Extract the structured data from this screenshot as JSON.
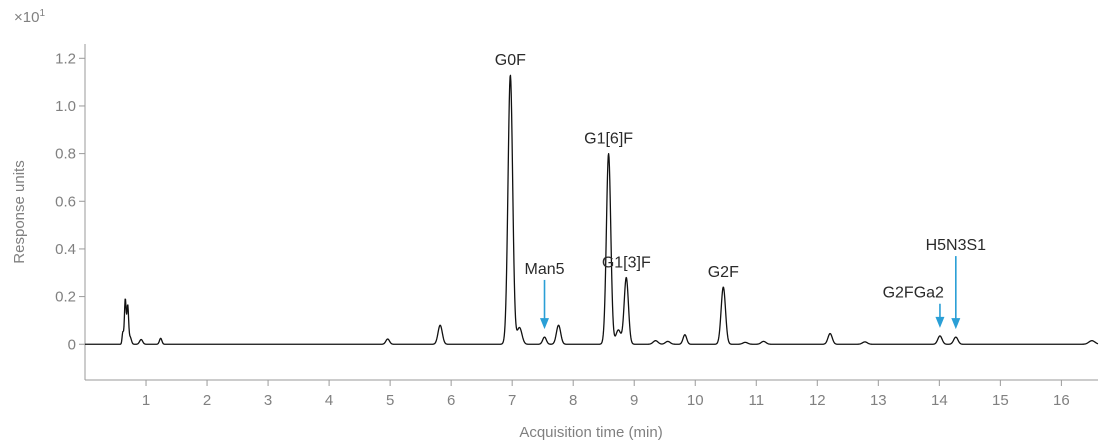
{
  "chart_data": {
    "type": "line",
    "title": "",
    "xlabel": "Acquisition time (min)",
    "ylabel": "Response units",
    "y_multiplier": "×10",
    "y_multiplier_exp": "1",
    "xlim": [
      0,
      16.6
    ],
    "ylim": [
      -0.15,
      1.26
    ],
    "xticks": [
      1,
      2,
      3,
      4,
      5,
      6,
      7,
      8,
      9,
      10,
      11,
      12,
      13,
      14,
      15,
      16
    ],
    "yticks": [
      0,
      0.2,
      0.4,
      0.6,
      0.8,
      1.0,
      1.2
    ],
    "ytick_labels": [
      "0",
      "0.2",
      "0.4",
      "0.6",
      "0.8",
      "1.0",
      "1.2"
    ],
    "grid": false,
    "trace_color": "#111111",
    "arrow_color": "#2a9fd6",
    "series": [
      {
        "peaks": [
          {
            "t": 0.62,
            "h": 0.05,
            "w": 0.012
          },
          {
            "t": 0.66,
            "h": 0.19,
            "w": 0.014
          },
          {
            "t": 0.7,
            "h": 0.16,
            "w": 0.014
          },
          {
            "t": 0.74,
            "h": 0.03,
            "w": 0.02
          },
          {
            "t": 0.92,
            "h": 0.02,
            "w": 0.025
          },
          {
            "t": 1.24,
            "h": 0.025,
            "w": 0.02
          },
          {
            "t": 4.96,
            "h": 0.022,
            "w": 0.03
          },
          {
            "t": 5.82,
            "h": 0.08,
            "w": 0.035
          },
          {
            "t": 6.97,
            "h": 1.13,
            "w": 0.038
          },
          {
            "t": 7.12,
            "h": 0.07,
            "w": 0.04
          },
          {
            "t": 7.53,
            "h": 0.03,
            "w": 0.03
          },
          {
            "t": 7.76,
            "h": 0.08,
            "w": 0.035
          },
          {
            "t": 8.58,
            "h": 0.8,
            "w": 0.036
          },
          {
            "t": 8.74,
            "h": 0.06,
            "w": 0.04
          },
          {
            "t": 8.87,
            "h": 0.28,
            "w": 0.035
          },
          {
            "t": 9.35,
            "h": 0.015,
            "w": 0.04
          },
          {
            "t": 9.55,
            "h": 0.012,
            "w": 0.04
          },
          {
            "t": 9.83,
            "h": 0.04,
            "w": 0.03
          },
          {
            "t": 10.46,
            "h": 0.24,
            "w": 0.036
          },
          {
            "t": 10.82,
            "h": 0.008,
            "w": 0.04
          },
          {
            "t": 11.12,
            "h": 0.012,
            "w": 0.04
          },
          {
            "t": 12.21,
            "h": 0.045,
            "w": 0.035
          },
          {
            "t": 12.78,
            "h": 0.01,
            "w": 0.04
          },
          {
            "t": 14.01,
            "h": 0.035,
            "w": 0.035
          },
          {
            "t": 14.27,
            "h": 0.03,
            "w": 0.035
          },
          {
            "t": 16.5,
            "h": 0.015,
            "w": 0.05
          }
        ]
      }
    ],
    "annotations": [
      {
        "text": "G0F",
        "x": 6.97,
        "y": 1.13,
        "arrow": false
      },
      {
        "text": "G1[6]F",
        "x": 8.58,
        "y": 0.8,
        "arrow": false
      },
      {
        "text": "G1[3]F",
        "x": 8.87,
        "y": 0.28,
        "arrow": false
      },
      {
        "text": "G2F",
        "x": 10.46,
        "y": 0.24,
        "arrow": false
      },
      {
        "text": "Man5",
        "x": 7.53,
        "y": 0.03,
        "arrow": true
      },
      {
        "text": "G2FGa2",
        "x": 14.01,
        "y": 0.035,
        "arrow": true
      },
      {
        "text": "H5N3S1",
        "x": 14.27,
        "y": 0.03,
        "arrow": true
      }
    ]
  }
}
